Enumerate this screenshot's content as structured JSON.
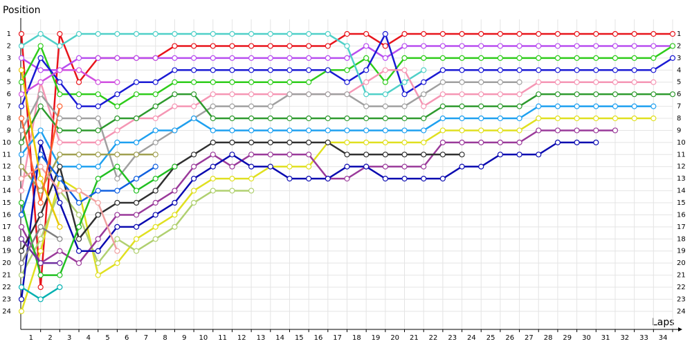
{
  "chart_data": {
    "type": "line",
    "y_title": "Position",
    "x_title": "Laps",
    "x": [
      0,
      1,
      2,
      3,
      4,
      5,
      6,
      7,
      8,
      9,
      10,
      11,
      12,
      13,
      14,
      15,
      16,
      17,
      18,
      19,
      20,
      21,
      22,
      23,
      24,
      25,
      26,
      27,
      28,
      29,
      30,
      31,
      32,
      33,
      34
    ],
    "xlim": [
      0,
      34
    ],
    "xticks": [
      1,
      2,
      3,
      4,
      5,
      6,
      7,
      8,
      9,
      10,
      11,
      12,
      13,
      14,
      15,
      16,
      17,
      18,
      19,
      20,
      21,
      22,
      23,
      24,
      25,
      26,
      27,
      28,
      29,
      30,
      31,
      32,
      33,
      34
    ],
    "ylim": [
      0,
      25.5
    ],
    "y_inverted": true,
    "yticks": [
      1,
      2,
      3,
      4,
      5,
      6,
      7,
      8,
      9,
      10,
      11,
      12,
      13,
      14,
      15,
      16,
      17,
      18,
      19,
      20,
      21,
      22,
      23,
      24
    ],
    "grid": true,
    "series": [
      {
        "color": "#e8141b",
        "values": [
          1,
          22,
          1,
          5,
          3,
          3,
          3,
          3,
          2,
          2,
          2,
          2,
          2,
          2,
          2,
          2,
          2,
          1,
          1,
          2,
          1,
          1,
          1,
          1,
          1,
          1,
          1,
          1,
          1,
          1,
          1,
          1,
          1,
          1,
          1
        ]
      },
      {
        "color": "#b84ef0",
        "values": [
          3,
          4,
          4,
          3,
          3,
          3,
          3,
          3,
          3,
          3,
          3,
          3,
          3,
          3,
          3,
          3,
          3,
          3,
          2,
          3,
          2,
          2,
          2,
          2,
          2,
          2,
          2,
          2,
          2,
          2,
          2,
          2,
          2,
          2,
          2
        ]
      },
      {
        "color": "#2ecc1a",
        "values": [
          5,
          2,
          6,
          6,
          6,
          7,
          6,
          6,
          5,
          5,
          5,
          5,
          5,
          5,
          5,
          5,
          4,
          4,
          3,
          5,
          3,
          3,
          3,
          3,
          3,
          3,
          3,
          3,
          3,
          3,
          3,
          3,
          3,
          3,
          2
        ]
      },
      {
        "color": "#1a1ad4",
        "values": [
          7,
          3,
          5,
          7,
          7,
          6,
          5,
          5,
          4,
          4,
          4,
          4,
          4,
          4,
          4,
          4,
          4,
          5,
          4,
          1,
          6,
          5,
          4,
          4,
          4,
          4,
          4,
          4,
          4,
          4,
          4,
          4,
          4,
          4,
          3
        ]
      },
      {
        "color": "#4fd0c8",
        "values": [
          2,
          1,
          2,
          1,
          1,
          1,
          1,
          1,
          1,
          1,
          1,
          1,
          1,
          1,
          1,
          1,
          1,
          2,
          6,
          6,
          5,
          4,
          null,
          null,
          null,
          null,
          null,
          null,
          null,
          null,
          null,
          null,
          null,
          null,
          null
        ]
      },
      {
        "color": "#f596b4",
        "values": [
          14,
          5,
          10,
          10,
          10,
          9,
          8,
          8,
          7,
          7,
          6,
          6,
          6,
          6,
          6,
          6,
          6,
          6,
          5,
          4,
          4,
          7,
          6,
          6,
          6,
          6,
          6,
          5,
          5,
          5,
          5,
          5,
          5,
          5,
          null
        ]
      },
      {
        "color": "#a0a0a0",
        "values": [
          9,
          6,
          8,
          8,
          8,
          13,
          11,
          10,
          9,
          8,
          7,
          7,
          7,
          7,
          6,
          6,
          6,
          6,
          7,
          7,
          7,
          6,
          5,
          5,
          5,
          5,
          5,
          null,
          null,
          null,
          null,
          null,
          null,
          null,
          null
        ]
      },
      {
        "color": "#2e9a2e",
        "values": [
          10,
          7,
          9,
          9,
          9,
          8,
          8,
          7,
          6,
          6,
          8,
          8,
          8,
          8,
          8,
          8,
          8,
          8,
          8,
          8,
          8,
          8,
          7,
          7,
          7,
          7,
          7,
          6,
          6,
          6,
          6,
          6,
          6,
          6,
          6
        ]
      },
      {
        "color": "#1ea0f0",
        "values": [
          11,
          9,
          12,
          12,
          12,
          10,
          10,
          9,
          9,
          8,
          9,
          9,
          9,
          9,
          9,
          9,
          9,
          9,
          9,
          9,
          9,
          9,
          8,
          8,
          8,
          8,
          8,
          7,
          7,
          7,
          7,
          7,
          7,
          7,
          null
        ]
      },
      {
        "color": "#e0e020",
        "values": [
          24,
          19,
          13,
          14,
          21,
          20,
          18,
          17,
          16,
          14,
          13,
          13,
          13,
          12,
          12,
          12,
          10,
          10,
          10,
          10,
          10,
          10,
          9,
          9,
          9,
          9,
          9,
          8,
          8,
          8,
          8,
          8,
          8,
          8,
          null
        ]
      },
      {
        "color": "#b0d070",
        "values": [
          21,
          18,
          14,
          16,
          20,
          18,
          19,
          18,
          17,
          15,
          14,
          14,
          14,
          null,
          null,
          null,
          null,
          null,
          null,
          null,
          null,
          null,
          null,
          null,
          null,
          null,
          null,
          null,
          null,
          null,
          null,
          null,
          null,
          null,
          null
        ]
      },
      {
        "color": "#9a3a9a",
        "values": [
          17,
          20,
          19,
          20,
          18,
          16,
          16,
          15,
          14,
          12,
          11,
          12,
          11,
          11,
          11,
          11,
          13,
          13,
          12,
          12,
          12,
          12,
          10,
          10,
          10,
          10,
          10,
          9,
          9,
          9,
          9,
          9,
          null,
          null,
          null
        ]
      },
      {
        "color": "#0a0ab0",
        "values": [
          23,
          10,
          15,
          19,
          19,
          17,
          17,
          16,
          15,
          13,
          12,
          11,
          12,
          12,
          13,
          13,
          13,
          12,
          12,
          13,
          13,
          13,
          13,
          12,
          12,
          11,
          11,
          11,
          10,
          10,
          10,
          null,
          null,
          null,
          null
        ]
      },
      {
        "color": "#303030",
        "values": [
          19,
          16,
          12,
          18,
          16,
          15,
          15,
          14,
          12,
          11,
          10,
          10,
          10,
          10,
          10,
          10,
          10,
          11,
          11,
          11,
          11,
          11,
          11,
          11,
          null,
          null,
          null,
          null,
          null,
          null,
          null,
          null,
          null,
          null,
          null
        ]
      },
      {
        "color": "#a0a050",
        "values": [
          12,
          14,
          11,
          11,
          11,
          11,
          11,
          11,
          null,
          null,
          null,
          null,
          null,
          null,
          null,
          null,
          null,
          null,
          null,
          null,
          null,
          null,
          null,
          null,
          null,
          null,
          null,
          null,
          null,
          null,
          null,
          null,
          null,
          null,
          null
        ]
      },
      {
        "color": "#22c022",
        "values": [
          15,
          21,
          21,
          17,
          13,
          12,
          14,
          13,
          12,
          null,
          null,
          null,
          null,
          null,
          null,
          null,
          null,
          null,
          null,
          null,
          null,
          null,
          null,
          null,
          null,
          null,
          null,
          null,
          null,
          null,
          null,
          null,
          null,
          null,
          null
        ]
      },
      {
        "color": "#1060e0",
        "values": [
          16,
          11,
          13,
          15,
          14,
          14,
          13,
          12,
          null,
          null,
          null,
          null,
          null,
          null,
          null,
          null,
          null,
          null,
          null,
          null,
          null,
          null,
          null,
          null,
          null,
          null,
          null,
          null,
          null,
          null,
          null,
          null,
          null,
          null,
          null
        ]
      },
      {
        "color": "#f0a0a0",
        "values": [
          13,
          12,
          14,
          14,
          15,
          19,
          null,
          null,
          null,
          null,
          null,
          null,
          null,
          null,
          null,
          null,
          null,
          null,
          null,
          null,
          null,
          null,
          null,
          null,
          null,
          null,
          null,
          null,
          null,
          null,
          null,
          null,
          null,
          null,
          null
        ]
      },
      {
        "color": "#d050e0",
        "values": [
          6,
          5,
          4,
          4,
          5,
          5,
          null,
          null,
          null,
          null,
          null,
          null,
          null,
          null,
          null,
          null,
          null,
          null,
          null,
          null,
          null,
          null,
          null,
          null,
          null,
          null,
          null,
          null,
          null,
          null,
          null,
          null,
          null,
          null,
          null
        ]
      },
      {
        "color": "#e8c800",
        "values": [
          4,
          13,
          17,
          null,
          null,
          null,
          null,
          null,
          null,
          null,
          null,
          null,
          null,
          null,
          null,
          null,
          null,
          null,
          null,
          null,
          null,
          null,
          null,
          null,
          null,
          null,
          null,
          null,
          null,
          null,
          null,
          null,
          null,
          null,
          null
        ]
      },
      {
        "color": "#7030a0",
        "values": [
          18,
          20,
          20,
          null,
          null,
          null,
          null,
          null,
          null,
          null,
          null,
          null,
          null,
          null,
          null,
          null,
          null,
          null,
          null,
          null,
          null,
          null,
          null,
          null,
          null,
          null,
          null,
          null,
          null,
          null,
          null,
          null,
          null,
          null,
          null
        ]
      },
      {
        "color": "#808080",
        "values": [
          20,
          17,
          18,
          null,
          null,
          null,
          null,
          null,
          null,
          null,
          null,
          null,
          null,
          null,
          null,
          null,
          null,
          null,
          null,
          null,
          null,
          null,
          null,
          null,
          null,
          null,
          null,
          null,
          null,
          null,
          null,
          null,
          null,
          null,
          null
        ]
      },
      {
        "color": "#00b0b0",
        "values": [
          22,
          23,
          22,
          null,
          null,
          null,
          null,
          null,
          null,
          null,
          null,
          null,
          null,
          null,
          null,
          null,
          null,
          null,
          null,
          null,
          null,
          null,
          null,
          null,
          null,
          null,
          null,
          null,
          null,
          null,
          null,
          null,
          null,
          null,
          null
        ]
      },
      {
        "color": "#ff6030",
        "values": [
          8,
          15,
          7,
          null,
          null,
          null,
          null,
          null,
          null,
          null,
          null,
          null,
          null,
          null,
          null,
          null,
          null,
          null,
          null,
          null,
          null,
          null,
          null,
          null,
          null,
          null,
          null,
          null,
          null,
          null,
          null,
          null,
          null,
          null,
          null
        ]
      }
    ]
  }
}
